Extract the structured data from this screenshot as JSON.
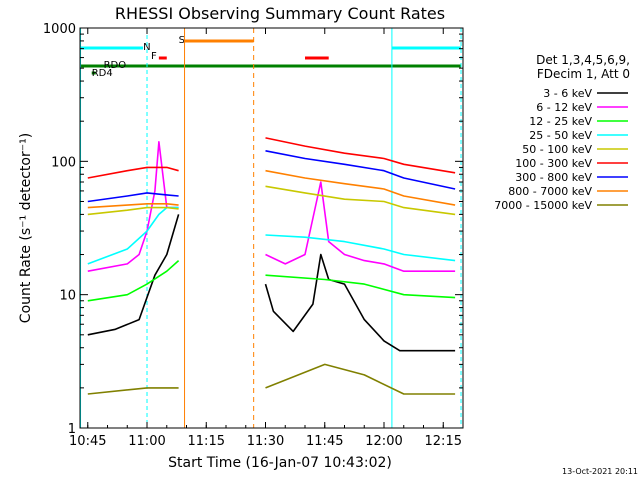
{
  "chart_data": {
    "type": "line",
    "title": "RHESSI Observing Summary Count Rates",
    "xlabel": "Start Time (16-Jan-07 10:43:02)",
    "ylabel": "Count Rate (s⁻¹ detector⁻¹)",
    "y_scale": "log",
    "ylim": [
      1,
      1000
    ],
    "xlim": [
      "10:43:02",
      "12:20:00"
    ],
    "x_ticks": [
      "10:45",
      "11:00",
      "11:15",
      "11:30",
      "11:45",
      "12:00",
      "12:15"
    ],
    "y_ticks": [
      "1",
      "10",
      "100",
      "1000"
    ],
    "legend_header": [
      "Det 1,3,4,5,6,9,",
      "FDecim 1, Att 0"
    ],
    "legend_position": "right",
    "series": [
      {
        "name": "3 - 6 keV",
        "color": "#000000",
        "x": [
          "10:45",
          "10:52",
          "10:58",
          "11:02",
          "11:05",
          "11:08",
          "11:30",
          "11:32",
          "11:37",
          "11:42",
          "11:44",
          "11:46",
          "11:50",
          "11:55",
          "12:00",
          "12:04",
          "12:18"
        ],
        "y": [
          5.0,
          5.5,
          6.5,
          14,
          20,
          40,
          12,
          7.5,
          5.3,
          8.5,
          20,
          13,
          12,
          6.5,
          4.5,
          3.8,
          3.8
        ]
      },
      {
        "name": "6 - 12 keV",
        "color": "#ff00ff",
        "x": [
          "10:45",
          "10:55",
          "10:58",
          "11:00",
          "11:02",
          "11:03",
          "11:05",
          "11:08",
          "11:30",
          "11:35",
          "11:40",
          "11:44",
          "11:46",
          "11:50",
          "11:55",
          "12:00",
          "12:05",
          "12:18"
        ],
        "y": [
          15,
          17,
          20,
          30,
          60,
          140,
          45,
          45,
          20,
          17,
          20,
          70,
          25,
          20,
          18,
          17,
          15,
          15
        ]
      },
      {
        "name": "12 - 25 keV",
        "color": "#00ff00",
        "x": [
          "10:45",
          "10:55",
          "11:00",
          "11:05",
          "11:08",
          "11:30",
          "11:45",
          "11:55",
          "12:05",
          "12:18"
        ],
        "y": [
          9,
          10,
          12,
          15,
          18,
          14,
          13,
          12,
          10,
          9.5
        ]
      },
      {
        "name": "25 - 50 keV",
        "color": "#00ffff",
        "x": [
          "10:45",
          "10:55",
          "11:00",
          "11:03",
          "11:05",
          "11:08",
          "11:30",
          "11:40",
          "11:50",
          "12:00",
          "12:05",
          "12:18"
        ],
        "y": [
          17,
          22,
          30,
          40,
          45,
          45,
          28,
          27,
          25,
          22,
          20,
          18
        ]
      },
      {
        "name": "50 - 100 keV",
        "color": "#c8c800",
        "x": [
          "10:45",
          "10:55",
          "11:00",
          "11:05",
          "11:08",
          "11:30",
          "11:40",
          "11:50",
          "12:00",
          "12:05",
          "12:18"
        ],
        "y": [
          40,
          43,
          45,
          45,
          44,
          65,
          58,
          52,
          50,
          45,
          40
        ]
      },
      {
        "name": "100 - 300 keV",
        "color": "#ff0000",
        "x": [
          "10:45",
          "10:55",
          "11:00",
          "11:05",
          "11:08",
          "11:30",
          "11:40",
          "11:50",
          "12:00",
          "12:05",
          "12:18"
        ],
        "y": [
          75,
          85,
          90,
          90,
          85,
          150,
          130,
          115,
          105,
          95,
          82
        ]
      },
      {
        "name": "300 - 800 keV",
        "color": "#0000ff",
        "x": [
          "10:45",
          "10:55",
          "11:00",
          "11:05",
          "11:08",
          "11:30",
          "11:40",
          "11:50",
          "12:00",
          "12:05",
          "12:18"
        ],
        "y": [
          50,
          55,
          58,
          56,
          55,
          120,
          105,
          95,
          85,
          75,
          62
        ]
      },
      {
        "name": "800 - 7000 keV",
        "color": "#ff8000",
        "x": [
          "10:45",
          "10:55",
          "11:00",
          "11:05",
          "11:08",
          "11:30",
          "11:40",
          "11:50",
          "12:00",
          "12:05",
          "12:18"
        ],
        "y": [
          45,
          47,
          48,
          48,
          47,
          85,
          75,
          68,
          62,
          55,
          47
        ]
      },
      {
        "name": "7000 - 15000 keV",
        "color": "#808000",
        "x": [
          "10:45",
          "11:00",
          "11:08",
          "11:30",
          "11:45",
          "11:55",
          "12:05",
          "12:18"
        ],
        "y": [
          1.8,
          2.0,
          2.0,
          2.0,
          3.0,
          2.5,
          1.8,
          1.8
        ]
      }
    ],
    "annotations": [
      {
        "text": "N",
        "color": "#00ffff"
      },
      {
        "text": "F",
        "color": "#ff8000"
      },
      {
        "text": "S",
        "color": "#ff8000"
      },
      {
        "text": "RDO",
        "color": "#008000"
      },
      {
        "text": "RD4",
        "color": "#008000"
      }
    ],
    "timestamp": "13-Oct-2021 20:11"
  }
}
